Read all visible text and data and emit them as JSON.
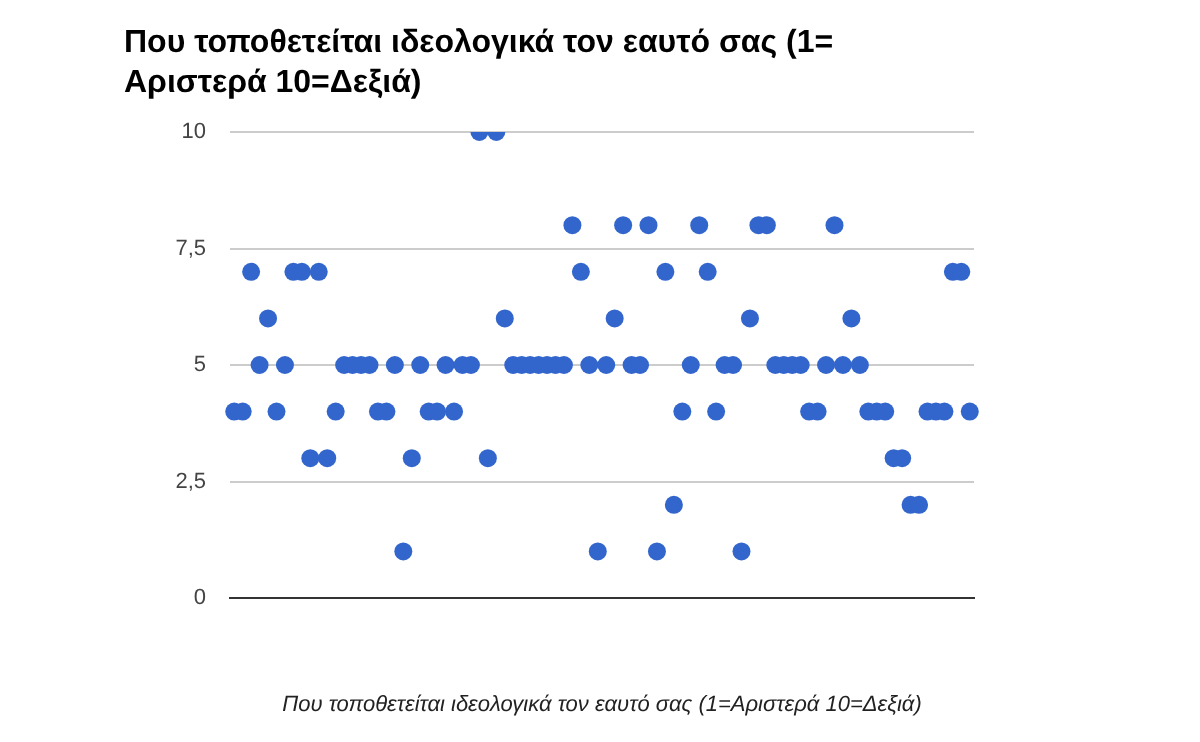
{
  "chart_data": {
    "type": "scatter",
    "title": "Που τοποθετείται ιδεολογικά τον εαυτό σας (1= Αριστερά 10=Δεξιά)",
    "xlabel": "Που τοποθετείται ιδεολογικά τον εαυτό σας (1=Αριστερά 10=Δεξιά)",
    "categories": [
      null,
      null,
      null,
      null,
      null,
      null,
      null,
      null,
      null,
      null,
      null,
      null,
      null,
      null,
      null,
      null,
      null,
      null,
      null,
      null,
      null,
      null,
      null,
      null,
      null,
      null,
      null,
      null,
      null,
      null,
      null,
      null,
      null,
      null,
      null,
      null,
      null,
      null,
      null,
      null,
      null,
      null,
      null,
      null,
      null,
      null,
      null,
      null,
      null,
      null,
      null,
      null,
      null,
      null,
      null,
      null,
      null,
      null,
      null,
      null,
      null,
      null,
      null,
      null,
      null,
      null,
      null,
      null,
      null,
      null,
      null,
      null,
      null,
      null,
      null,
      null,
      null,
      null,
      null,
      null,
      null,
      null,
      null,
      null,
      null,
      null,
      null,
      null
    ],
    "series": [
      {
        "color": "#3366cc",
        "values": [
          4,
          4,
          7,
          5,
          6,
          4,
          5,
          7,
          7,
          3,
          7,
          3,
          4,
          5,
          5,
          5,
          5,
          4,
          4,
          5,
          1,
          3,
          5,
          4,
          4,
          5,
          4,
          5,
          5,
          10,
          3,
          10,
          6,
          5,
          5,
          5,
          5,
          5,
          5,
          5,
          8,
          7,
          5,
          1,
          5,
          6,
          8,
          5,
          5,
          8,
          1,
          7,
          2,
          4,
          5,
          8,
          7,
          4,
          5,
          5,
          1,
          6,
          8,
          8,
          5,
          5,
          5,
          5,
          4,
          4,
          5,
          8,
          5,
          6,
          5,
          4,
          4,
          4,
          3,
          3,
          2,
          2,
          4,
          4,
          4,
          7,
          7,
          4
        ]
      }
    ],
    "ylim": [
      0,
      10
    ],
    "yticks": [
      0,
      {
        "value": 2.5,
        "label": "2,5"
      },
      5,
      {
        "value": 7.5,
        "label": "7,5"
      },
      10
    ],
    "grid": "y",
    "legend": false,
    "marker": "circle",
    "tick_labels": "y"
  }
}
